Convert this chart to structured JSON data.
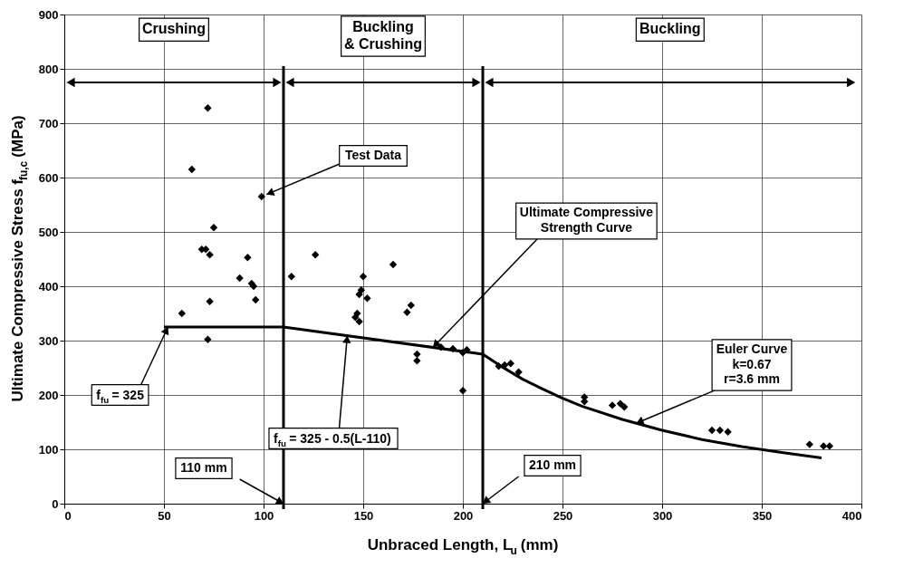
{
  "chart_data": {
    "type": "scatter",
    "xlabel": "Unbraced Length, L$_{u}$ (mm)",
    "ylabel": "Ultimate Compressive Stress f$_{fu,c}$ (MPa)",
    "xlim": [
      0,
      400
    ],
    "xticks": [
      0,
      50,
      100,
      150,
      200,
      250,
      300,
      350,
      400
    ],
    "ylim": [
      0,
      900
    ],
    "yticks": [
      0,
      100,
      200,
      300,
      400,
      500,
      600,
      700,
      800,
      900
    ],
    "grid": true,
    "marker": "diamond",
    "series": [
      {
        "color": "#000000",
        "x": [
          72,
          64,
          99,
          75,
          69,
          71,
          73,
          92,
          88,
          94,
          95,
          96,
          73,
          59,
          72,
          114,
          126,
          150,
          149,
          148,
          152,
          147,
          146,
          148,
          165,
          172,
          174,
          177,
          177,
          189,
          195,
          200,
          202,
          200,
          218,
          221,
          224,
          228,
          261,
          261,
          275,
          279,
          281,
          325,
          329,
          333,
          374,
          381,
          384
        ],
        "values": [
          728,
          615,
          565,
          508,
          468,
          468,
          458,
          453,
          415,
          405,
          400,
          375,
          372,
          350,
          302,
          418,
          458,
          418,
          393,
          385,
          378,
          350,
          343,
          335,
          440,
          352,
          365,
          275,
          263,
          288,
          285,
          278,
          283,
          208,
          253,
          255,
          258,
          242,
          196,
          188,
          181,
          184,
          178,
          135,
          135,
          132,
          109,
          106,
          106
        ]
      },
      {
        "type": "line",
        "color": "#000000",
        "marker": "none",
        "line_style": "solid",
        "x": [
          50,
          110,
          210,
          220,
          230,
          240,
          250,
          260,
          280,
          300,
          320,
          340,
          360,
          380
        ],
        "values": [
          325,
          325,
          275,
          251,
          229,
          211,
          194,
          179,
          155,
          135,
          118,
          105,
          94,
          84
        ]
      }
    ],
    "ref_lines": [
      {
        "axis": "x",
        "value": 110,
        "label": "110 mm"
      },
      {
        "axis": "x",
        "value": 210,
        "label": "210 mm"
      }
    ],
    "annotations": [
      "Crushing",
      "Buckling\n& Crushing",
      "Buckling",
      {
        "text": "Test Data",
        "x": 99,
        "y": 565
      },
      {
        "text": "Ultimate Compressive\nStrength Curve",
        "x": 185,
        "y": 287.5
      },
      {
        "text": "Euler Curve\nk=0.67\nr=3.6 mm",
        "x": 287,
        "y": 148
      },
      {
        "text": "f$_{fu}$ = 325",
        "x": 52,
        "y": 325
      },
      {
        "text": "f$_{fu}$ = 325 - 0.5(L-110)",
        "x": 142,
        "y": 309
      }
    ]
  }
}
